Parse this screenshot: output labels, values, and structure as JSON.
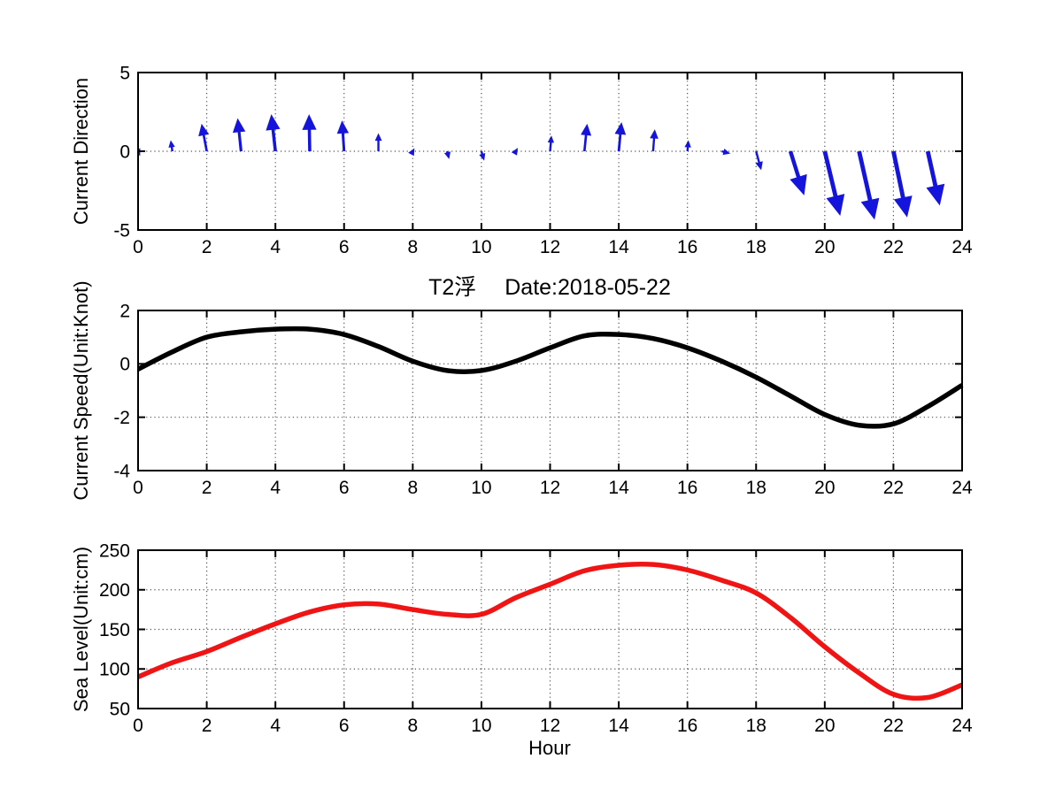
{
  "figure": {
    "title": "T2浮  Date:2018-05-22",
    "title_color": "#D42B2B",
    "xlabel": "Hour",
    "background": "#FFFFFF",
    "frame_color": "#000000",
    "grid_color": "#333333"
  },
  "chart_data": [
    {
      "type": "quiver",
      "name": "current-direction",
      "ylabel": "Current Direction",
      "xlim": [
        0,
        24
      ],
      "ylim": [
        -5,
        5
      ],
      "xticks": [
        0,
        2,
        4,
        6,
        8,
        10,
        12,
        14,
        16,
        18,
        20,
        22,
        24
      ],
      "yticks": [
        5,
        0,
        -5
      ],
      "grid_y": [
        0
      ],
      "grid": true,
      "color": "#1414DC",
      "x": [
        0,
        1,
        2,
        3,
        4,
        5,
        6,
        7,
        8,
        9,
        10,
        11,
        12,
        13,
        14,
        15,
        16,
        17,
        18,
        19,
        20,
        21,
        22,
        23,
        24
      ],
      "dx": [
        0.06,
        -0.05,
        -0.15,
        -0.1,
        -0.12,
        -0.02,
        -0.06,
        0.0,
        0.05,
        0.06,
        0.08,
        0.06,
        0.04,
        0.08,
        0.08,
        0.05,
        0.03,
        0.25,
        0.15,
        0.4,
        0.45,
        0.45,
        0.4,
        0.35,
        0.25
      ],
      "dy": [
        -0.3,
        0.7,
        1.75,
        2.1,
        2.35,
        2.35,
        1.95,
        1.15,
        0.2,
        -0.5,
        -0.6,
        0.22,
        1.0,
        1.75,
        1.85,
        1.4,
        0.7,
        -0.15,
        -1.2,
        -2.8,
        -4.1,
        -4.35,
        -4.2,
        -3.45,
        -1.6
      ]
    },
    {
      "type": "line",
      "name": "current-speed",
      "ylabel": "Current Speed(Unit:Knot)",
      "xlim": [
        0,
        24
      ],
      "ylim": [
        -4,
        2
      ],
      "xticks": [
        0,
        2,
        4,
        6,
        8,
        10,
        12,
        14,
        16,
        18,
        20,
        22,
        24
      ],
      "yticks": [
        2,
        0,
        -2,
        -4
      ],
      "grid_y": [
        0,
        -2
      ],
      "grid": true,
      "color": "#000000",
      "x": [
        0,
        1,
        2,
        3,
        4,
        5,
        6,
        7,
        8,
        9,
        10,
        11,
        12,
        13,
        14,
        15,
        16,
        17,
        18,
        19,
        20,
        21,
        22,
        23,
        24
      ],
      "y": [
        -0.2,
        0.45,
        1.0,
        1.2,
        1.3,
        1.3,
        1.1,
        0.65,
        0.1,
        -0.25,
        -0.25,
        0.1,
        0.6,
        1.05,
        1.1,
        0.95,
        0.6,
        0.1,
        -0.5,
        -1.2,
        -1.9,
        -2.3,
        -2.25,
        -1.6,
        -0.8
      ]
    },
    {
      "type": "line",
      "name": "sea-level",
      "ylabel": "Sea Level(Unit:cm)",
      "xlim": [
        0,
        24
      ],
      "ylim": [
        50,
        250
      ],
      "xticks": [
        0,
        2,
        4,
        6,
        8,
        10,
        12,
        14,
        16,
        18,
        20,
        22,
        24
      ],
      "yticks": [
        250,
        200,
        150,
        100,
        50
      ],
      "grid_y": [
        200,
        150,
        100
      ],
      "grid": true,
      "color": "#F01414",
      "x": [
        0,
        1,
        2,
        3,
        4,
        5,
        6,
        7,
        8,
        9,
        10,
        11,
        12,
        13,
        14,
        15,
        16,
        17,
        18,
        19,
        20,
        21,
        22,
        23,
        24
      ],
      "y": [
        90,
        108,
        122,
        140,
        157,
        172,
        181,
        182,
        175,
        169,
        169,
        190,
        207,
        224,
        231,
        232,
        225,
        212,
        196,
        165,
        128,
        95,
        68,
        64,
        80
      ]
    }
  ]
}
